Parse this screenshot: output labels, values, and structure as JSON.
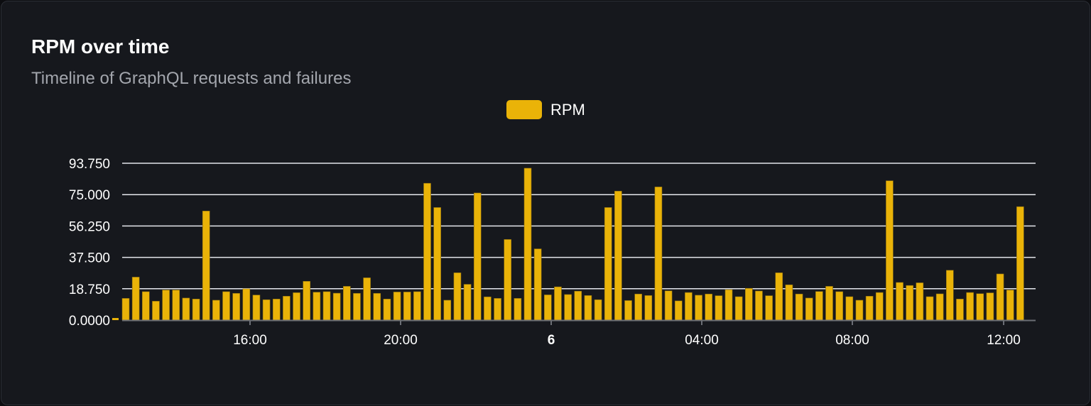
{
  "header": {
    "title": "RPM over time",
    "subtitle": "Timeline of GraphQL requests and failures"
  },
  "legend": {
    "label": "RPM",
    "color": "#eab308"
  },
  "chart_data": {
    "type": "bar",
    "title": "RPM over time",
    "subtitle": "Timeline of GraphQL requests and failures",
    "series": [
      {
        "name": "RPM",
        "color": "#eab308",
        "values": [
          13.0,
          25.7,
          17.0,
          11.3,
          18.0,
          18.0,
          13.2,
          12.6,
          65.2,
          11.9,
          17.0,
          16.0,
          18.7,
          15.0,
          12.2,
          12.6,
          14.3,
          16.4,
          23.2,
          16.7,
          17.0,
          16.1,
          20.2,
          16.0,
          25.3,
          16.0,
          12.6,
          16.8,
          16.8,
          17.0,
          81.8,
          67.3,
          11.9,
          28.3,
          21.4,
          76.0,
          13.9,
          13.0,
          48.2,
          13.0,
          90.8,
          42.6,
          15.1,
          19.9,
          15.3,
          17.3,
          14.7,
          12.2,
          67.3,
          77.1,
          11.7,
          15.6,
          14.7,
          79.6,
          17.5,
          11.5,
          16.5,
          14.9,
          15.6,
          14.6,
          18.2,
          14.0,
          19.0,
          17.4,
          14.6,
          28.3,
          21.1,
          15.6,
          13.2,
          17.1,
          20.2,
          17.0,
          14.0,
          11.9,
          14.3,
          16.5,
          83.3,
          22.5,
          20.7,
          22.3,
          14.0,
          15.7,
          29.8,
          12.6,
          16.5,
          15.8,
          16.3,
          27.6,
          18.0,
          67.8
        ]
      }
    ],
    "ylim": [
      0,
      93.75
    ],
    "yticks": [
      "0.0000",
      "18.750",
      "37.500",
      "56.250",
      "75.000",
      "93.750"
    ],
    "xticks": [
      {
        "label": "16:00",
        "bold": false
      },
      {
        "label": "20:00",
        "bold": false
      },
      {
        "label": "6",
        "bold": true
      },
      {
        "label": "04:00",
        "bold": false
      },
      {
        "label": "08:00",
        "bold": false
      },
      {
        "label": "12:00",
        "bold": false
      }
    ],
    "grid": true,
    "legend": "top-center"
  }
}
